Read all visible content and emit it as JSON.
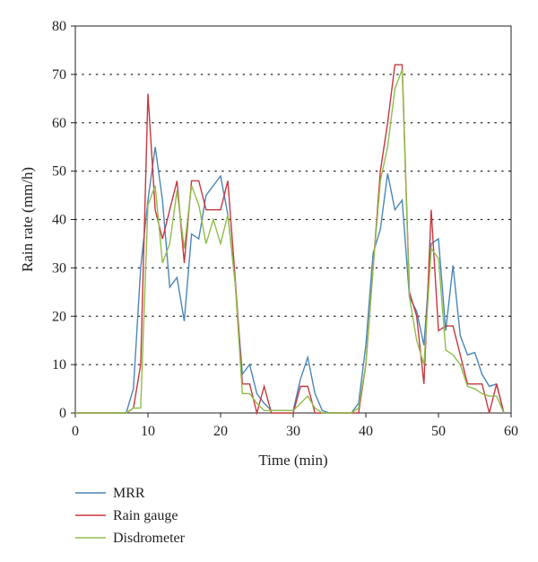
{
  "chart_data": {
    "type": "line",
    "xlabel": "Time (min)",
    "ylabel": "Rain rate (mm/h)",
    "xlim": [
      0,
      60
    ],
    "ylim": [
      0,
      80
    ],
    "xticks": [
      0,
      10,
      20,
      30,
      40,
      50,
      60
    ],
    "yticks": [
      0,
      10,
      20,
      30,
      40,
      50,
      60,
      70,
      80
    ],
    "grid": "horizontal dotted",
    "legend_position": "bottom-left",
    "x": [
      0,
      1,
      2,
      3,
      4,
      5,
      6,
      7,
      8,
      9,
      10,
      11,
      12,
      13,
      14,
      15,
      16,
      17,
      18,
      19,
      20,
      21,
      22,
      23,
      24,
      25,
      26,
      27,
      28,
      29,
      30,
      31,
      32,
      33,
      34,
      35,
      36,
      37,
      38,
      39,
      40,
      41,
      42,
      43,
      44,
      45,
      46,
      47,
      48,
      49,
      50,
      51,
      52,
      53,
      54,
      55,
      56,
      57,
      58,
      59
    ],
    "series": [
      {
        "name": "MRR",
        "color": "#4a86b8",
        "values": [
          0,
          0,
          0,
          0,
          0,
          0,
          0,
          0,
          5,
          30,
          44,
          55,
          44,
          26,
          28,
          19,
          37,
          36,
          45,
          47,
          49,
          41,
          27,
          8,
          10,
          4,
          2,
          0.5,
          0.5,
          0.5,
          0.5,
          7,
          11.5,
          4,
          0.5,
          0,
          0,
          0,
          0,
          2,
          14,
          33,
          38,
          49.5,
          42,
          44,
          24,
          21,
          14,
          35,
          36,
          17,
          30.5,
          16,
          12,
          12.5,
          8,
          5.5,
          6,
          0
        ]
      },
      {
        "name": "Rain gauge",
        "color": "#c8373f",
        "values": [
          0,
          0,
          0,
          0,
          0,
          0,
          0,
          0,
          1,
          10,
          66,
          42,
          36,
          42,
          48,
          31,
          48,
          48,
          42,
          42,
          42,
          48,
          28,
          6,
          6,
          0,
          5.5,
          0,
          0,
          0,
          0,
          5.5,
          5.5,
          0,
          0,
          0,
          0,
          0,
          0,
          0,
          10,
          30,
          50,
          60,
          72,
          72,
          25,
          20,
          6,
          42,
          17,
          18,
          18,
          12,
          6,
          6,
          6,
          0,
          6,
          0
        ]
      },
      {
        "name": "Disdrometer",
        "color": "#8fbd4b",
        "values": [
          0,
          0,
          0,
          0,
          0,
          0,
          0,
          0,
          1,
          1,
          43,
          47,
          31,
          35,
          46,
          34,
          47,
          43,
          35,
          40,
          35,
          41,
          27,
          4,
          4,
          2,
          0.5,
          0.5,
          0.5,
          0.5,
          0.5,
          2,
          3.5,
          1,
          0,
          0,
          0,
          0,
          0,
          1,
          10,
          30,
          48,
          55,
          67,
          71,
          24,
          15,
          10,
          34,
          32,
          13,
          12,
          10,
          5.5,
          5,
          4,
          3.5,
          3.5,
          0
        ]
      }
    ]
  }
}
